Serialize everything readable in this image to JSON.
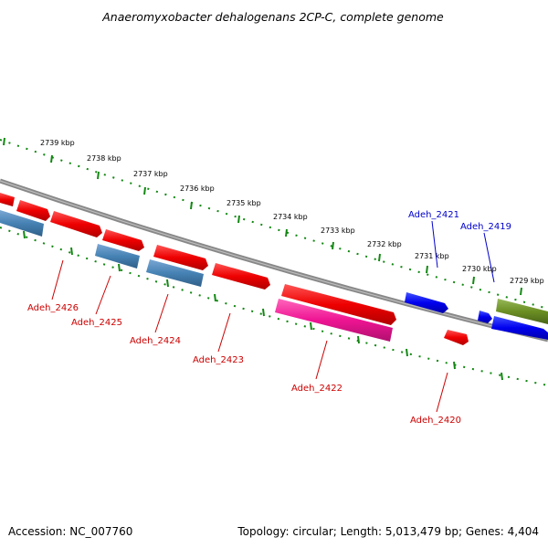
{
  "title": "Anaeromyxobacter dehalogenans 2CP-C, complete genome",
  "footer": {
    "accession": "Accession: NC_007760",
    "summary": "Topology: circular; Length: 5,013,479 bp; Genes: 4,404"
  },
  "scale_labels": [
    "2739 kbp",
    "2738 kbp",
    "2737 kbp",
    "2736 kbp",
    "2735 kbp",
    "2734 kbp",
    "2733 kbp",
    "2732 kbp",
    "2731 kbp",
    "2730 kbp",
    "2729 kbp"
  ],
  "genes": [
    {
      "id": "Adeh_2426",
      "color": "#dd0000",
      "text_color": "#cc0000"
    },
    {
      "id": "Adeh_2425",
      "color": "#dd0000",
      "text_color": "#cc0000"
    },
    {
      "id": "Adeh_2424",
      "color": "#dd0000",
      "text_color": "#cc0000"
    },
    {
      "id": "Adeh_2423",
      "color": "#dd0000",
      "text_color": "#cc0000"
    },
    {
      "id": "Adeh_2422",
      "color": "#dd0000",
      "text_color": "#cc0000"
    },
    {
      "id": "Adeh_2420",
      "color": "#dd0000",
      "text_color": "#cc0000"
    },
    {
      "id": "Adeh_2421",
      "color": "#0000dd",
      "text_color": "#0000cc"
    },
    {
      "id": "Adeh_2419",
      "color": "#0000dd",
      "text_color": "#0000cc"
    }
  ],
  "colors": {
    "backbone": "#808080",
    "tick_marks": "#118811",
    "feature_red": "#ee0000",
    "feature_blue": "#0000ee",
    "feature_steelblue": "#4682b4",
    "feature_magenta": "#ee1493",
    "feature_olive": "#6b8e23"
  }
}
